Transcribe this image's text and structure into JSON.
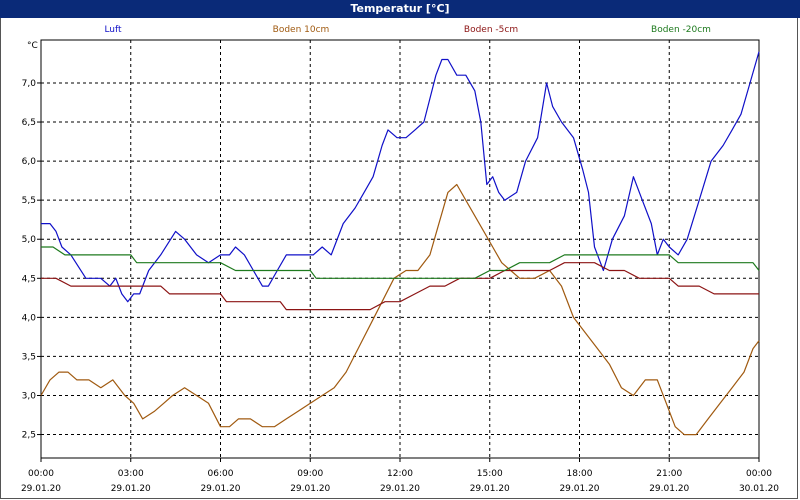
{
  "window": {
    "title": "Temperatur [°C]"
  },
  "chart_data": {
    "type": "line",
    "title": "Temperatur [°C]",
    "ylabel": "°C",
    "ylim": [
      2.2,
      7.55
    ],
    "yticks": [
      2.5,
      3.0,
      3.5,
      4.0,
      4.5,
      5.0,
      5.5,
      6.0,
      6.5,
      7.0
    ],
    "ytick_labels": [
      "2,5",
      "3,0",
      "3,5",
      "4,0",
      "4,5",
      "5,0",
      "5,5",
      "6,0",
      "6,5",
      "7,0"
    ],
    "xlim": [
      0,
      24
    ],
    "xticks": [
      0,
      3,
      6,
      9,
      12,
      15,
      18,
      21,
      24
    ],
    "xtick_time_labels": [
      "00:00",
      "03:00",
      "06:00",
      "09:00",
      "12:00",
      "15:00",
      "18:00",
      "21:00",
      "00:00"
    ],
    "xtick_date_labels": [
      "29.01.20",
      "29.01.20",
      "29.01.20",
      "29.01.20",
      "29.01.20",
      "29.01.20",
      "29.01.20",
      "29.01.20",
      "30.01.20"
    ],
    "grid": true,
    "legend_position": "top",
    "series": [
      {
        "name": "Luft",
        "color": "#1010c8",
        "x": [
          0,
          0.3,
          0.5,
          0.7,
          1.0,
          1.5,
          2.0,
          2.3,
          2.5,
          2.7,
          2.9,
          3.1,
          3.3,
          3.6,
          4.0,
          4.5,
          4.8,
          5.2,
          5.6,
          6.0,
          6.3,
          6.5,
          6.8,
          7.1,
          7.4,
          7.6,
          7.9,
          8.2,
          8.6,
          9.1,
          9.4,
          9.7,
          10.1,
          10.5,
          10.8,
          11.1,
          11.4,
          11.6,
          11.9,
          12.2,
          12.5,
          12.8,
          13.0,
          13.2,
          13.4,
          13.6,
          13.9,
          14.2,
          14.5,
          14.7,
          14.9,
          15.1,
          15.3,
          15.5,
          15.9,
          16.2,
          16.6,
          16.9,
          17.1,
          17.4,
          17.8,
          18.1,
          18.3,
          18.5,
          18.8,
          19.1,
          19.5,
          19.8,
          20.1,
          20.4,
          20.6,
          20.8,
          21.0,
          21.3,
          21.6,
          22.0,
          22.4,
          22.8,
          23.1,
          23.4,
          23.7,
          24.0
        ],
        "values": [
          5.2,
          5.2,
          5.1,
          4.9,
          4.8,
          4.5,
          4.5,
          4.4,
          4.5,
          4.3,
          4.2,
          4.3,
          4.3,
          4.6,
          4.8,
          5.1,
          5.0,
          4.8,
          4.7,
          4.8,
          4.8,
          4.9,
          4.8,
          4.6,
          4.4,
          4.4,
          4.6,
          4.8,
          4.8,
          4.8,
          4.9,
          4.8,
          5.2,
          5.4,
          5.6,
          5.8,
          6.2,
          6.4,
          6.3,
          6.3,
          6.4,
          6.5,
          6.8,
          7.1,
          7.3,
          7.3,
          7.1,
          7.1,
          6.9,
          6.5,
          5.7,
          5.8,
          5.6,
          5.5,
          5.6,
          6.0,
          6.3,
          7.0,
          6.7,
          6.5,
          6.3,
          5.9,
          5.6,
          4.9,
          4.6,
          5.0,
          5.3,
          5.8,
          5.5,
          5.2,
          4.8,
          5.0,
          4.9,
          4.8,
          5.0,
          5.5,
          6.0,
          6.2,
          6.4,
          6.6,
          7.0,
          7.4
        ]
      },
      {
        "name": "Boden 10cm",
        "color": "#a05a10",
        "x": [
          0,
          0.3,
          0.6,
          0.9,
          1.2,
          1.6,
          2.0,
          2.4,
          2.8,
          3.1,
          3.4,
          3.8,
          4.1,
          4.4,
          4.8,
          5.2,
          5.6,
          6.0,
          6.3,
          6.6,
          7.0,
          7.4,
          7.8,
          8.2,
          8.6,
          9.0,
          9.4,
          9.8,
          10.2,
          10.6,
          11.0,
          11.4,
          11.8,
          12.2,
          12.6,
          13.0,
          13.3,
          13.6,
          13.9,
          14.2,
          14.5,
          14.8,
          15.1,
          15.4,
          15.7,
          16.0,
          16.5,
          17.0,
          17.4,
          17.8,
          18.2,
          18.6,
          19.0,
          19.4,
          19.8,
          20.2,
          20.6,
          20.9,
          21.2,
          21.5,
          21.9,
          22.3,
          22.7,
          23.1,
          23.5,
          23.8,
          24.0
        ],
        "values": [
          3.0,
          3.2,
          3.3,
          3.3,
          3.2,
          3.2,
          3.1,
          3.2,
          3.0,
          2.9,
          2.7,
          2.8,
          2.9,
          3.0,
          3.1,
          3.0,
          2.9,
          2.6,
          2.6,
          2.7,
          2.7,
          2.6,
          2.6,
          2.7,
          2.8,
          2.9,
          3.0,
          3.1,
          3.3,
          3.6,
          3.9,
          4.2,
          4.5,
          4.6,
          4.6,
          4.8,
          5.2,
          5.6,
          5.7,
          5.5,
          5.3,
          5.1,
          4.9,
          4.7,
          4.6,
          4.5,
          4.5,
          4.6,
          4.4,
          4.0,
          3.8,
          3.6,
          3.4,
          3.1,
          3.0,
          3.2,
          3.2,
          2.9,
          2.6,
          2.5,
          2.5,
          2.7,
          2.9,
          3.1,
          3.3,
          3.6,
          3.7
        ]
      },
      {
        "name": "Boden -5cm",
        "color": "#8c1414",
        "x": [
          0,
          0.5,
          1.0,
          2.0,
          3.0,
          4.0,
          4.3,
          5.0,
          6.0,
          6.2,
          7.0,
          8.0,
          8.2,
          9.0,
          10.0,
          11.0,
          11.5,
          12.0,
          12.5,
          13.0,
          13.5,
          14.0,
          14.5,
          15.0,
          15.5,
          16.0,
          16.5,
          17.0,
          17.5,
          18.0,
          18.5,
          19.0,
          19.5,
          20.0,
          20.5,
          21.0,
          21.3,
          22.0,
          22.5,
          23.0,
          23.5,
          24.0
        ],
        "values": [
          4.5,
          4.5,
          4.4,
          4.4,
          4.4,
          4.4,
          4.3,
          4.3,
          4.3,
          4.2,
          4.2,
          4.2,
          4.1,
          4.1,
          4.1,
          4.1,
          4.2,
          4.2,
          4.3,
          4.4,
          4.4,
          4.5,
          4.5,
          4.5,
          4.6,
          4.6,
          4.6,
          4.6,
          4.7,
          4.7,
          4.7,
          4.6,
          4.6,
          4.5,
          4.5,
          4.5,
          4.4,
          4.4,
          4.3,
          4.3,
          4.3,
          4.3
        ]
      },
      {
        "name": "Boden -20cm",
        "color": "#1e7a1e",
        "x": [
          0,
          0.4,
          0.8,
          2.0,
          3.0,
          3.2,
          5.0,
          6.0,
          6.5,
          8.0,
          9.0,
          9.2,
          11.0,
          12.0,
          14.0,
          14.5,
          15.0,
          15.5,
          16.0,
          17.0,
          17.5,
          19.0,
          20.0,
          21.0,
          21.3,
          22.0,
          23.0,
          23.8,
          24.0
        ],
        "values": [
          4.9,
          4.9,
          4.8,
          4.8,
          4.8,
          4.7,
          4.7,
          4.7,
          4.6,
          4.6,
          4.6,
          4.5,
          4.5,
          4.5,
          4.5,
          4.5,
          4.6,
          4.6,
          4.7,
          4.7,
          4.8,
          4.8,
          4.8,
          4.8,
          4.7,
          4.7,
          4.7,
          4.7,
          4.6
        ]
      }
    ]
  }
}
